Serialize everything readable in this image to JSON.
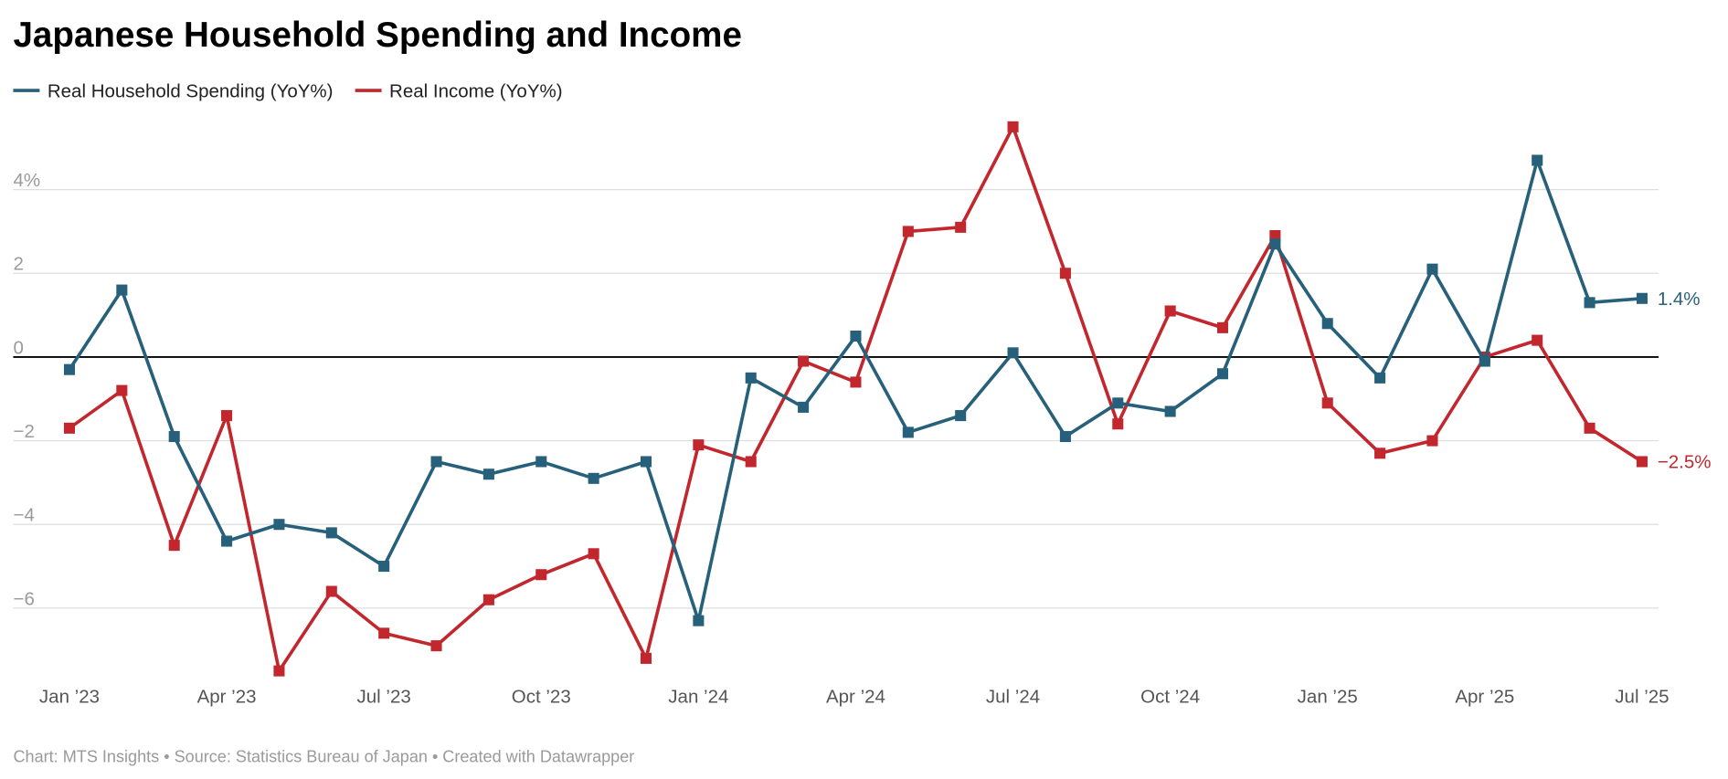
{
  "title": "Japanese Household Spending and Income",
  "footer": "Chart: MTS Insights • Source: Statistics Bureau of Japan • Created with Datawrapper",
  "chart_data": {
    "type": "line",
    "title": "Japanese Household Spending and Income",
    "xlabel": "",
    "ylabel": "",
    "ylim": [
      -7.5,
      5.5
    ],
    "yticks": [
      4,
      2,
      0,
      -2,
      -4,
      -6
    ],
    "ytick_labels": [
      "4%",
      "2",
      "0",
      "−2",
      "−4",
      "−6"
    ],
    "xtick_labels": [
      "Jan ’23",
      "Apr ’23",
      "Jul ’23",
      "Oct ’23",
      "Jan ’24",
      "Apr ’24",
      "Jul ’24",
      "Oct ’24",
      "Jan ’25",
      "Apr ’25",
      "Jul ’25"
    ],
    "xtick_every": 3,
    "grid": true,
    "legend_position": "top-left",
    "x": [
      "2023-01",
      "2023-02",
      "2023-03",
      "2023-04",
      "2023-05",
      "2023-06",
      "2023-07",
      "2023-08",
      "2023-09",
      "2023-10",
      "2023-11",
      "2023-12",
      "2024-01",
      "2024-02",
      "2024-03",
      "2024-04",
      "2024-05",
      "2024-06",
      "2024-07",
      "2024-08",
      "2024-09",
      "2024-10",
      "2024-11",
      "2024-12",
      "2025-01",
      "2025-02",
      "2025-03",
      "2025-04",
      "2025-05",
      "2025-06",
      "2025-07"
    ],
    "series": [
      {
        "name": "Real Household Spending (YoY%)",
        "color": "#27607a",
        "end_label": "1.4%",
        "values": [
          -0.3,
          1.6,
          -1.9,
          -4.4,
          -4.0,
          -4.2,
          -5.0,
          -2.5,
          -2.8,
          -2.5,
          -2.9,
          -2.5,
          -6.3,
          -0.5,
          -1.2,
          0.5,
          -1.8,
          -1.4,
          0.1,
          -1.9,
          -1.1,
          -1.3,
          -0.4,
          2.7,
          0.8,
          -0.5,
          2.1,
          -0.1,
          4.7,
          1.3,
          1.4
        ]
      },
      {
        "name": "Real Income (YoY%)",
        "color": "#c1272d",
        "end_label": "−2.5%",
        "values": [
          -1.7,
          -0.8,
          -4.5,
          -1.4,
          -7.5,
          -5.6,
          -6.6,
          -6.9,
          -5.8,
          -5.2,
          -4.7,
          -7.2,
          -2.1,
          -2.5,
          -0.1,
          -0.6,
          3.0,
          3.1,
          5.5,
          2.0,
          -1.6,
          1.1,
          0.7,
          2.9,
          -1.1,
          -2.3,
          -2.0,
          0.0,
          0.4,
          -1.7,
          -2.5
        ]
      }
    ]
  }
}
